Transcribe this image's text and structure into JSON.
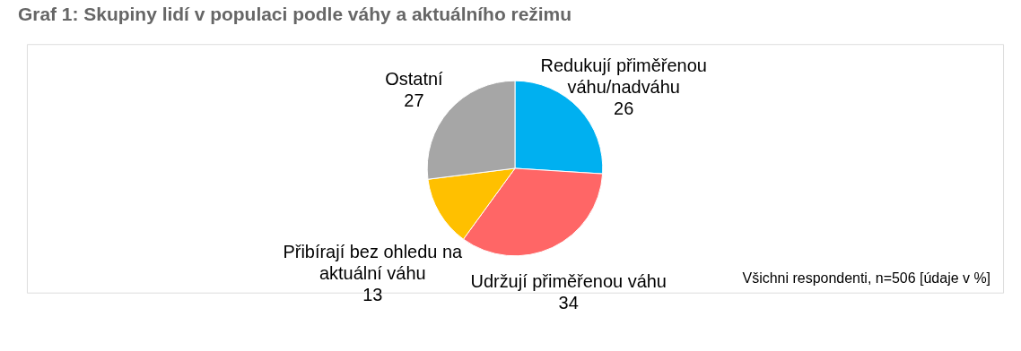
{
  "chart_data": {
    "type": "pie",
    "title": "Graf 1: Skupiny lidí v populaci podle váhy a aktuálního režimu",
    "categories": [
      "Redukují přiměřenou váhu/nadváhu",
      "Udržují přiměřenou váhu",
      "Přibírají bez ohledu na aktuální váhu",
      "Ostatní"
    ],
    "values": [
      26,
      34,
      13,
      27
    ],
    "colors": [
      "#00b0f0",
      "#ff6666",
      "#ffc000",
      "#a6a6a6"
    ],
    "data_labels": true,
    "annotations": [
      "Všichni respondenti, n=506 [údaje v %]"
    ]
  }
}
